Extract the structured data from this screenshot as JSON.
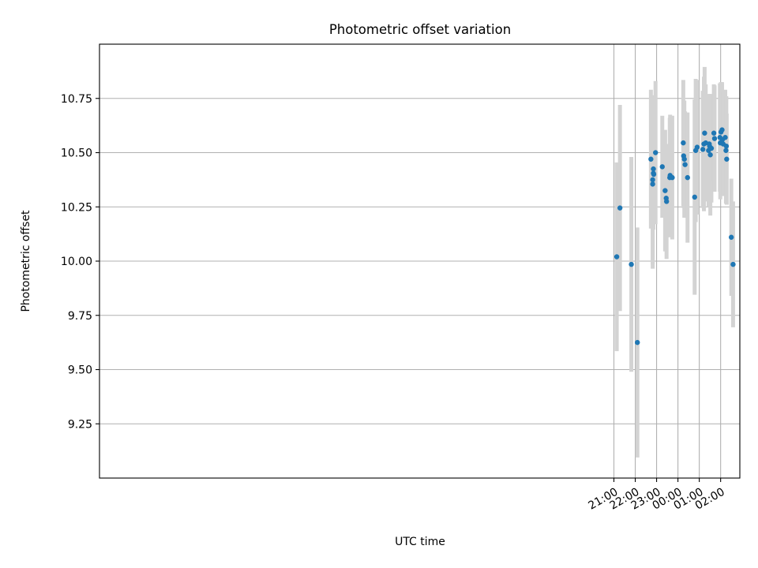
{
  "chart_data": {
    "type": "scatter",
    "title": "Photometric offset variation",
    "xlabel": "UTC time",
    "ylabel": "Photometric offset",
    "x_tick_labels": [
      "21:00",
      "22:00",
      "23:00",
      "00:00",
      "01:00",
      "02:00"
    ],
    "y_tick_labels": [
      "9.25",
      "9.50",
      "9.75",
      "10.00",
      "10.25",
      "10.50",
      "10.75"
    ],
    "x_tick_values": [
      "21:00",
      "22:00",
      "23:00",
      "00:00",
      "01:00",
      "02:00"
    ],
    "y_tick_values": [
      9.25,
      9.5,
      9.75,
      10.0,
      10.25,
      10.5,
      10.75
    ],
    "xlim": [
      "20:54",
      "02:54"
    ],
    "ylim": [
      9.0,
      11.0
    ],
    "grid": true,
    "colors": {
      "marker": "#1f77b4",
      "errorbar": "#d3d3d3",
      "grid": "#b0b0b0"
    },
    "series": [
      {
        "x": [
          "21:08",
          "21:17",
          "21:49",
          "22:06",
          "22:44",
          "22:49",
          "22:49",
          "22:51",
          "22:51",
          "22:52",
          "22:57",
          "23:16",
          "23:24",
          "23:27",
          "23:28",
          "23:37",
          "23:38",
          "23:44",
          "00:15",
          "00:16",
          "00:18",
          "00:20",
          "00:27",
          "00:47",
          "00:50",
          "00:54",
          "01:10",
          "01:13",
          "01:15",
          "01:18",
          "01:26",
          "01:28",
          "01:29",
          "01:31",
          "01:34",
          "01:41",
          "01:43",
          "01:58",
          "01:59",
          "02:01",
          "02:04",
          "02:05",
          "02:07",
          "02:13",
          "02:15",
          "02:16",
          "02:17",
          "02:30",
          "02:35"
        ],
        "y": [
          10.02,
          10.245,
          9.985,
          9.625,
          10.47,
          10.355,
          10.375,
          10.405,
          10.425,
          10.4,
          10.5,
          10.435,
          10.325,
          10.29,
          10.275,
          10.385,
          10.395,
          10.385,
          10.545,
          10.485,
          10.47,
          10.445,
          10.385,
          10.295,
          10.51,
          10.525,
          10.515,
          10.54,
          10.59,
          10.545,
          10.51,
          10.54,
          10.53,
          10.49,
          10.52,
          10.59,
          10.565,
          10.57,
          10.545,
          10.595,
          10.605,
          10.56,
          10.54,
          10.57,
          10.51,
          10.53,
          10.47,
          10.11,
          9.985
        ],
        "yerr": [
          0.435,
          0.475,
          0.495,
          0.53,
          0.32,
          0.39,
          0.39,
          0.26,
          0.24,
          0.21,
          0.33,
          0.235,
          0.28,
          0.24,
          0.265,
          0.275,
          0.28,
          0.285,
          0.29,
          0.24,
          0.27,
          0.245,
          0.3,
          0.45,
          0.33,
          0.31,
          0.27,
          0.31,
          0.305,
          0.27,
          0.26,
          0.23,
          0.24,
          0.28,
          0.25,
          0.225,
          0.245,
          0.25,
          0.26,
          0.23,
          0.22,
          0.23,
          0.24,
          0.22,
          0.245,
          0.23,
          0.21,
          0.27,
          0.29
        ]
      }
    ]
  }
}
